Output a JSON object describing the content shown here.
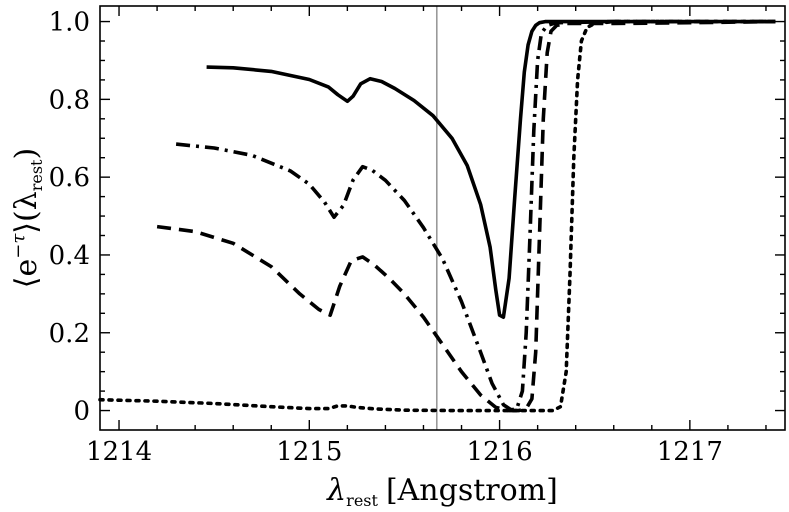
{
  "chart_data": {
    "type": "line",
    "xlabel": "λrest [Angstrom]",
    "xlabel_parts": {
      "symbol": "λ",
      "subscript": "rest",
      "unit": "[Angstrom]"
    },
    "ylabel": "⟨e^−τ⟩(λrest)",
    "ylabel_parts": {
      "open": "⟨e",
      "superscript": "−τ",
      "close": "⟩(λ",
      "subscript": "rest",
      "end": ")"
    },
    "xlim": [
      1213.9,
      1217.5
    ],
    "ylim": [
      -0.05,
      1.04
    ],
    "xticks": [
      {
        "value": 1214,
        "label": "1214"
      },
      {
        "value": 1215,
        "label": "1215"
      },
      {
        "value": 1216,
        "label": "1216"
      },
      {
        "value": 1217,
        "label": "1217"
      }
    ],
    "yticks": [
      {
        "value": 0,
        "label": "0"
      },
      {
        "value": 0.2,
        "label": "0.2"
      },
      {
        "value": 0.4,
        "label": "0.4"
      },
      {
        "value": 0.6,
        "label": "0.6"
      },
      {
        "value": 0.8,
        "label": "0.8"
      },
      {
        "value": 1.0,
        "label": "1.0"
      }
    ],
    "vline": {
      "x": 1215.67,
      "color": "#999999"
    },
    "grid": false,
    "legend": "none",
    "series": [
      {
        "style": "solid",
        "color": "#000000",
        "x": [
          1214.46,
          1214.6,
          1214.8,
          1215.0,
          1215.1,
          1215.15,
          1215.2,
          1215.23,
          1215.27,
          1215.32,
          1215.38,
          1215.45,
          1215.55,
          1215.65,
          1215.75,
          1215.83,
          1215.9,
          1215.95,
          1215.98,
          1216.0,
          1216.02,
          1216.05,
          1216.08,
          1216.11,
          1216.13,
          1216.15,
          1216.17,
          1216.19,
          1216.21,
          1216.24,
          1216.3,
          1216.6,
          1217.0,
          1217.45
        ],
        "y": [
          0.883,
          0.881,
          0.872,
          0.851,
          0.832,
          0.812,
          0.795,
          0.808,
          0.84,
          0.853,
          0.846,
          0.828,
          0.797,
          0.758,
          0.7,
          0.63,
          0.53,
          0.42,
          0.31,
          0.245,
          0.24,
          0.34,
          0.55,
          0.75,
          0.87,
          0.94,
          0.975,
          0.99,
          0.997,
          1.0,
          1.0,
          1.0,
          1.0,
          1.0
        ]
      },
      {
        "style": "dashdot",
        "color": "#000000",
        "x": [
          1214.3,
          1214.5,
          1214.7,
          1214.9,
          1215.0,
          1215.08,
          1215.13,
          1215.18,
          1215.23,
          1215.28,
          1215.33,
          1215.4,
          1215.5,
          1215.6,
          1215.7,
          1215.8,
          1215.9,
          1215.96,
          1216.02,
          1216.06,
          1216.09,
          1216.12,
          1216.14,
          1216.16,
          1216.18,
          1216.2,
          1216.22,
          1216.25,
          1216.3,
          1216.6,
          1217.0,
          1217.45
        ],
        "y": [
          0.685,
          0.675,
          0.656,
          0.616,
          0.582,
          0.536,
          0.497,
          0.528,
          0.593,
          0.627,
          0.618,
          0.592,
          0.54,
          0.47,
          0.39,
          0.28,
          0.15,
          0.07,
          0.015,
          0.002,
          0.004,
          0.05,
          0.2,
          0.45,
          0.72,
          0.9,
          0.97,
          0.99,
          0.997,
          1.0,
          1.0,
          1.0
        ]
      },
      {
        "style": "dashed",
        "color": "#000000",
        "x": [
          1214.2,
          1214.4,
          1214.6,
          1214.8,
          1214.95,
          1215.05,
          1215.11,
          1215.16,
          1215.22,
          1215.28,
          1215.34,
          1215.42,
          1215.5,
          1215.6,
          1215.7,
          1215.8,
          1215.9,
          1215.98,
          1216.05,
          1216.1,
          1216.14,
          1216.17,
          1216.19,
          1216.21,
          1216.23,
          1216.25,
          1216.27,
          1216.3,
          1216.35,
          1216.6,
          1217.0,
          1217.45
        ],
        "y": [
          0.473,
          0.46,
          0.43,
          0.37,
          0.3,
          0.26,
          0.245,
          0.32,
          0.385,
          0.395,
          0.375,
          0.34,
          0.3,
          0.24,
          0.17,
          0.1,
          0.04,
          0.008,
          0.0,
          0.0,
          0.005,
          0.03,
          0.15,
          0.45,
          0.75,
          0.92,
          0.975,
          0.99,
          0.995,
          0.995,
          0.997,
          1.0
        ]
      },
      {
        "style": "dotted",
        "color": "#000000",
        "x": [
          1213.9,
          1214.2,
          1214.5,
          1214.8,
          1215.0,
          1215.1,
          1215.15,
          1215.2,
          1215.25,
          1215.35,
          1215.5,
          1215.8,
          1216.1,
          1216.2,
          1216.28,
          1216.32,
          1216.35,
          1216.37,
          1216.39,
          1216.41,
          1216.43,
          1216.46,
          1216.5,
          1216.6,
          1217.0,
          1217.45
        ],
        "y": [
          0.028,
          0.024,
          0.018,
          0.01,
          0.005,
          0.005,
          0.012,
          0.012,
          0.008,
          0.004,
          0.001,
          0.0,
          0.0,
          0.0,
          0.0,
          0.01,
          0.1,
          0.35,
          0.65,
          0.85,
          0.95,
          0.985,
          0.995,
          1.0,
          1.0,
          1.0
        ]
      }
    ]
  }
}
